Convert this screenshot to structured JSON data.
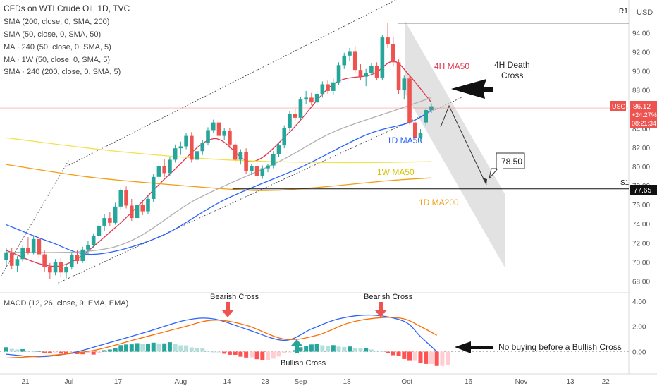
{
  "header": {
    "title": "CFDs on WTI Crude Oil, 1D, TVC",
    "currency": "USD",
    "indicators": [
      "SMA (200, close, 0, SMA, 200)",
      "SMA (50, close, 0, SMA, 50)",
      "MA · 240 (50, close, 0, SMA, 5)",
      "MA · 1W (50, close, 0, SMA, 5)",
      "SMA · 240 (200, close, 0, SMA, 5)"
    ],
    "macd_label": "MACD (12, 26, close, 9, EMA, EMA)"
  },
  "price_tag": {
    "symbol": "USOIL",
    "price": "86.12",
    "change": "+24.27%",
    "timer": "08:21:34"
  },
  "levels": {
    "r1": {
      "label": "R1",
      "value": 95
    },
    "s1": {
      "label": "S1",
      "value": 77.65,
      "tag": "77.65"
    }
  },
  "annotations": {
    "death_cross": "4H Death\nCross",
    "target": "78.50",
    "ma_4h": "4H MA50",
    "ma_1d_50": "1D MA50",
    "ma_1w_50": "1W MA50",
    "ma_1d_200": "1D MA200",
    "bearish_cross_1": "Bearish Cross",
    "bearish_cross_2": "Bearish Cross",
    "bullish_cross": "Bullish Cross",
    "no_buying": "No buying before a Bullish Cross"
  },
  "colors": {
    "up": "#26a69a",
    "down": "#ef5350",
    "ma_4h": "#e0344f",
    "ma_1d_50": "#2962ff",
    "ma_1w_50": "#f0e24a",
    "ma_1d_200": "#f39c12",
    "sma_240": "#b0b0b0",
    "macd": "#2962ff",
    "signal": "#ff6d00"
  },
  "chart_data": [
    {
      "type": "candlestick",
      "title": "CFDs on WTI Crude Oil, 1D, TVC",
      "x_ticks": [
        "21",
        "Jul",
        "17",
        "Aug",
        "14",
        "23",
        "Sep",
        "18",
        "Oct",
        "16",
        "Nov",
        "13",
        "22"
      ],
      "y_ticks": [
        68,
        70,
        72,
        74,
        76,
        78,
        80,
        82,
        84,
        86,
        88,
        90,
        92,
        94
      ],
      "ylim": [
        67,
        95.5
      ],
      "series": [
        {
          "name": "OHLC",
          "ohlc": [
            [
              70.2,
              71.4,
              69.6,
              71.0
            ],
            [
              71.0,
              71.5,
              69.2,
              69.6
            ],
            [
              69.6,
              70.6,
              69.0,
              70.3
            ],
            [
              70.3,
              71.8,
              70.0,
              71.5
            ],
            [
              71.5,
              72.6,
              70.8,
              71.0
            ],
            [
              71.0,
              72.7,
              70.8,
              72.4
            ],
            [
              72.4,
              72.8,
              70.4,
              70.8
            ],
            [
              70.8,
              71.2,
              69.0,
              69.5
            ],
            [
              69.5,
              69.9,
              68.2,
              68.9
            ],
            [
              68.9,
              70.3,
              68.6,
              70.0
            ],
            [
              70.0,
              70.4,
              68.4,
              68.9
            ],
            [
              68.9,
              69.8,
              68.3,
              69.5
            ],
            [
              69.5,
              71.0,
              69.2,
              70.7
            ],
            [
              70.7,
              71.2,
              69.8,
              70.1
            ],
            [
              70.1,
              71.6,
              69.9,
              71.3
            ],
            [
              71.3,
              72.2,
              70.8,
              71.8
            ],
            [
              71.8,
              73.0,
              71.5,
              72.7
            ],
            [
              72.7,
              74.1,
              72.4,
              73.8
            ],
            [
              73.8,
              75.0,
              73.2,
              74.6
            ],
            [
              74.6,
              75.2,
              73.8,
              74.1
            ],
            [
              74.1,
              76.2,
              73.9,
              75.8
            ],
            [
              75.8,
              77.8,
              75.5,
              77.5
            ],
            [
              77.5,
              77.9,
              75.6,
              75.9
            ],
            [
              75.9,
              76.6,
              74.3,
              74.6
            ],
            [
              74.6,
              76.3,
              74.3,
              76.0
            ],
            [
              76.0,
              76.5,
              74.9,
              75.3
            ],
            [
              75.3,
              76.9,
              75.0,
              76.6
            ],
            [
              76.6,
              79.2,
              76.3,
              78.9
            ],
            [
              78.9,
              80.4,
              78.5,
              80.0
            ],
            [
              80.0,
              80.8,
              78.9,
              79.3
            ],
            [
              79.3,
              81.0,
              79.0,
              80.7
            ],
            [
              80.7,
              82.3,
              80.4,
              81.9
            ],
            [
              81.9,
              82.6,
              81.2,
              82.1
            ],
            [
              82.1,
              83.5,
              81.8,
              83.2
            ],
            [
              83.2,
              83.6,
              80.4,
              80.7
            ],
            [
              80.7,
              82.0,
              80.4,
              81.6
            ],
            [
              81.6,
              82.8,
              81.2,
              82.5
            ],
            [
              82.5,
              84.1,
              82.2,
              83.8
            ],
            [
              83.8,
              84.9,
              83.5,
              84.6
            ],
            [
              84.6,
              84.9,
              82.8,
              83.2
            ],
            [
              83.2,
              84.0,
              82.8,
              83.7
            ],
            [
              83.7,
              84.0,
              81.9,
              82.3
            ],
            [
              82.3,
              82.6,
              80.4,
              80.7
            ],
            [
              80.7,
              81.8,
              80.2,
              81.5
            ],
            [
              81.5,
              81.9,
              79.2,
              79.5
            ],
            [
              79.5,
              80.3,
              79.1,
              80.0
            ],
            [
              80.0,
              80.4,
              78.4,
              79.0
            ],
            [
              79.0,
              80.1,
              78.7,
              79.8
            ],
            [
              79.8,
              80.3,
              79.4,
              80.1
            ],
            [
              80.1,
              81.6,
              79.8,
              81.3
            ],
            [
              81.3,
              82.5,
              81.0,
              82.2
            ],
            [
              82.2,
              84.3,
              81.9,
              84.0
            ],
            [
              84.0,
              85.8,
              83.7,
              85.5
            ],
            [
              85.5,
              86.1,
              84.8,
              85.1
            ],
            [
              85.1,
              87.3,
              84.9,
              87.0
            ],
            [
              87.0,
              87.9,
              86.5,
              87.2
            ],
            [
              87.2,
              87.7,
              86.4,
              86.7
            ],
            [
              86.7,
              87.9,
              86.4,
              87.6
            ],
            [
              87.6,
              88.9,
              87.2,
              88.6
            ],
            [
              88.6,
              89.0,
              87.6,
              87.9
            ],
            [
              87.9,
              89.2,
              87.5,
              88.8
            ],
            [
              88.8,
              90.9,
              88.5,
              90.6
            ],
            [
              90.6,
              91.9,
              90.2,
              91.6
            ],
            [
              91.6,
              92.4,
              91.0,
              92.0
            ],
            [
              92.0,
              92.6,
              89.8,
              90.1
            ],
            [
              90.1,
              90.7,
              89.0,
              89.4
            ],
            [
              89.4,
              90.2,
              88.4,
              89.8
            ],
            [
              89.8,
              90.8,
              89.5,
              90.5
            ],
            [
              90.5,
              90.9,
              89.0,
              89.3
            ],
            [
              89.3,
              93.8,
              89.0,
              93.5
            ],
            [
              93.5,
              95.0,
              92.4,
              92.8
            ],
            [
              92.8,
              93.6,
              90.5,
              90.9
            ],
            [
              90.9,
              91.2,
              87.6,
              88.0
            ],
            [
              88.0,
              89.5,
              87.0,
              89.2
            ],
            [
              89.2,
              89.6,
              84.4,
              84.6
            ],
            [
              84.6,
              85.0,
              82.8,
              83.0
            ],
            [
              83.0,
              83.9,
              82.6,
              83.5
            ],
            [
              84.6,
              86.1,
              84.3,
              85.9
            ],
            [
              85.9,
              86.6,
              85.6,
              86.3
            ]
          ]
        },
        {
          "name": "4H MA50",
          "values": [
            [
              0,
              71.2
            ],
            [
              10,
              69.6
            ],
            [
              20,
              73.6
            ],
            [
              30,
              79.2
            ],
            [
              38,
              82.9
            ],
            [
              45,
              80.5
            ],
            [
              52,
              83.6
            ],
            [
              60,
              88.6
            ],
            [
              67,
              89.6
            ],
            [
              71,
              91.0
            ],
            [
              74,
              89.5
            ],
            [
              78,
              86.7
            ]
          ]
        },
        {
          "name": "1D MA50",
          "values": [
            [
              0,
              73.9
            ],
            [
              8,
              72.1
            ],
            [
              16,
              70.8
            ],
            [
              28,
              72.6
            ],
            [
              40,
              76.5
            ],
            [
              54,
              79.9
            ],
            [
              66,
              83.3
            ],
            [
              74,
              84.6
            ],
            [
              78,
              85.9
            ]
          ]
        },
        {
          "name": "SMA 240 (200)",
          "values": [
            [
              0,
              71.0
            ],
            [
              20,
              71.6
            ],
            [
              35,
              76.6
            ],
            [
              50,
              80.5
            ],
            [
              60,
              83.6
            ],
            [
              72,
              86.0
            ],
            [
              78,
              87.2
            ]
          ]
        },
        {
          "name": "1W MA50",
          "values": [
            [
              0,
              83.0
            ],
            [
              20,
              81.6
            ],
            [
              40,
              80.7
            ],
            [
              60,
              80.4
            ],
            [
              78,
              80.5
            ]
          ]
        },
        {
          "name": "1D MA200",
          "values": [
            [
              0,
              80.2
            ],
            [
              15,
              78.9
            ],
            [
              30,
              78.1
            ],
            [
              45,
              77.5
            ],
            [
              55,
              77.7
            ],
            [
              70,
              78.5
            ],
            [
              78,
              78.8
            ]
          ]
        }
      ]
    },
    {
      "type": "histogram",
      "title": "MACD (12, 26, close, 9, EMA, EMA)",
      "y_ticks": [
        0.0,
        2.0,
        4.0
      ],
      "ylim": [
        -1.2,
        4.5
      ],
      "series": [
        {
          "name": "MACD",
          "values": [
            [
              0,
              -0.2
            ],
            [
              6,
              -0.4
            ],
            [
              12,
              -0.1
            ],
            [
              18,
              0.6
            ],
            [
              26,
              1.6
            ],
            [
              33,
              2.5
            ],
            [
              38,
              2.6
            ],
            [
              44,
              1.8
            ],
            [
              51,
              0.9
            ],
            [
              56,
              1.8
            ],
            [
              61,
              2.6
            ],
            [
              67,
              2.9
            ],
            [
              73,
              2.4
            ],
            [
              76,
              1.2
            ],
            [
              79,
              0.0
            ]
          ]
        },
        {
          "name": "Signal",
          "values": [
            [
              0,
              -0.5
            ],
            [
              8,
              -0.3
            ],
            [
              16,
              0.1
            ],
            [
              24,
              1.0
            ],
            [
              32,
              1.9
            ],
            [
              38,
              2.5
            ],
            [
              44,
              2.1
            ],
            [
              51,
              1.0
            ],
            [
              57,
              1.3
            ],
            [
              63,
              2.3
            ],
            [
              69,
              2.7
            ],
            [
              73,
              2.6
            ],
            [
              76,
              2.0
            ],
            [
              79,
              1.3
            ]
          ]
        },
        {
          "name": "Histogram",
          "values": [
            [
              0,
              0.3
            ],
            [
              8,
              -0.1
            ],
            [
              16,
              -0.2
            ],
            [
              22,
              0.6
            ],
            [
              30,
              0.7
            ],
            [
              36,
              0.2
            ],
            [
              42,
              -0.3
            ],
            [
              48,
              -0.7
            ],
            [
              52,
              0.0
            ],
            [
              56,
              0.6
            ],
            [
              62,
              0.4
            ],
            [
              67,
              0.2
            ],
            [
              70,
              -0.1
            ],
            [
              74,
              -0.7
            ],
            [
              79,
              -1.1
            ]
          ]
        }
      ]
    }
  ]
}
